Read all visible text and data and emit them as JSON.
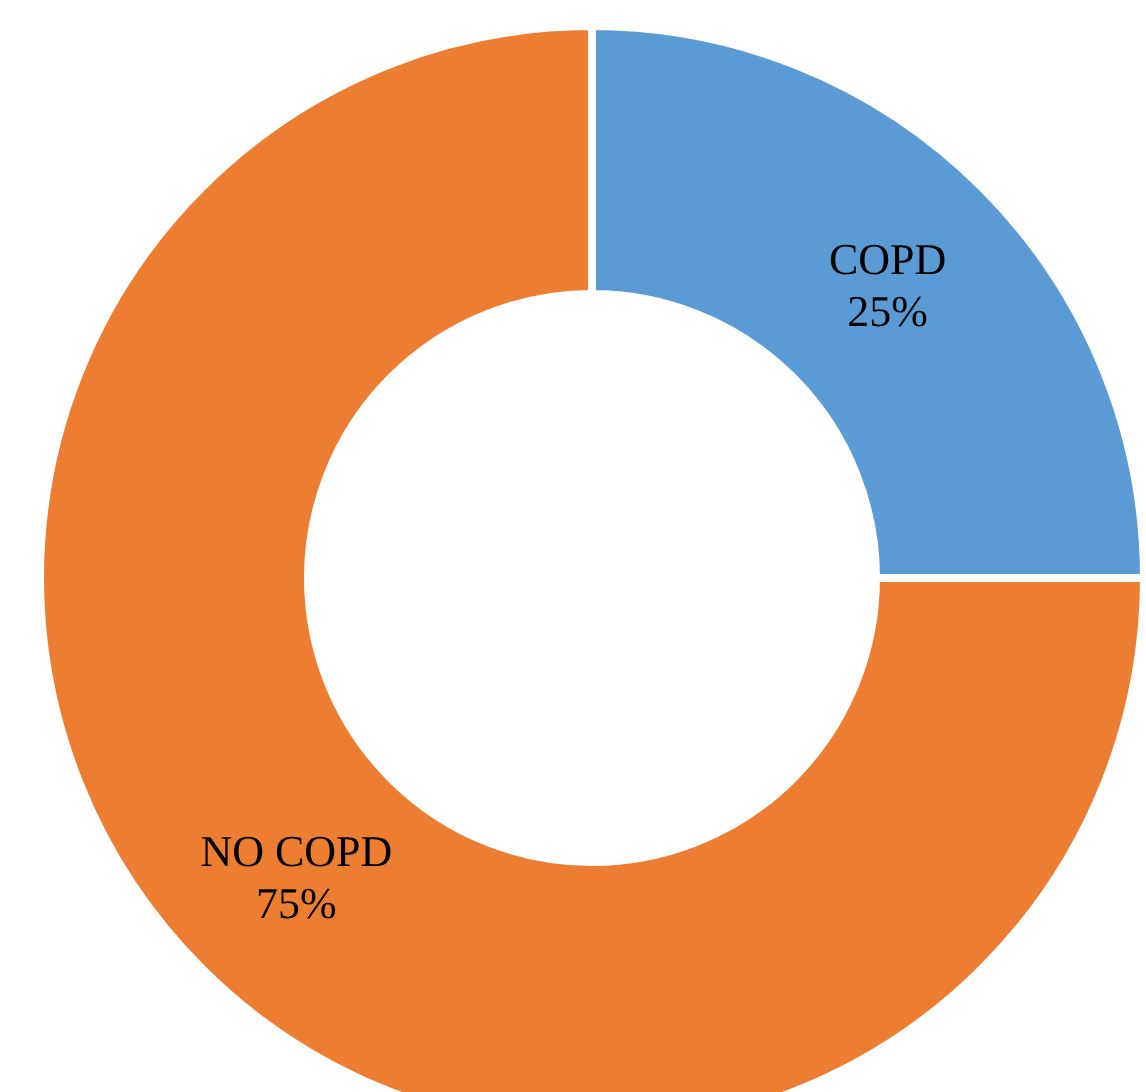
{
  "chart_data": {
    "type": "donut",
    "categories": [
      "COPD",
      "NO COPD"
    ],
    "values": [
      25,
      75
    ],
    "colors": [
      "#5b9bd5",
      "#ed7d31"
    ],
    "value_labels": [
      "25%",
      "75%"
    ]
  }
}
